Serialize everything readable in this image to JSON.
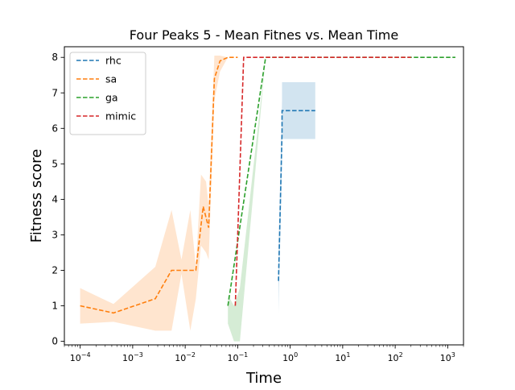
{
  "chart_data": {
    "type": "line",
    "title": "Four Peaks 5 - Mean Fitnes vs. Mean Time",
    "xlabel": "Time",
    "ylabel": "Fitness score",
    "xscale": "log",
    "xlim": [
      5e-05,
      2000
    ],
    "ylim": [
      -0.1,
      8.3
    ],
    "x_ticks": [
      {
        "value": 0.0001,
        "base": "10",
        "exp": "−4"
      },
      {
        "value": 0.001,
        "base": "10",
        "exp": "−3"
      },
      {
        "value": 0.01,
        "base": "10",
        "exp": "−2"
      },
      {
        "value": 0.1,
        "base": "10",
        "exp": "−1"
      },
      {
        "value": 1,
        "base": "10",
        "exp": "0"
      },
      {
        "value": 10,
        "base": "10",
        "exp": "1"
      },
      {
        "value": 100,
        "base": "10",
        "exp": "2"
      },
      {
        "value": 1000,
        "base": "10",
        "exp": "3"
      }
    ],
    "y_ticks": [
      {
        "value": 0,
        "label": "0"
      },
      {
        "value": 1,
        "label": "1"
      },
      {
        "value": 2,
        "label": "2"
      },
      {
        "value": 3,
        "label": "3"
      },
      {
        "value": 4,
        "label": "4"
      },
      {
        "value": 5,
        "label": "5"
      },
      {
        "value": 6,
        "label": "6"
      },
      {
        "value": 7,
        "label": "7"
      },
      {
        "value": 8,
        "label": "8"
      }
    ],
    "grid": false,
    "legend_position": "top-left",
    "series": [
      {
        "name": "rhc",
        "color": "#1f77b4",
        "linestyle": "dashed",
        "x": [
          0.6,
          0.7,
          0.7,
          3.0
        ],
        "y": [
          1.7,
          5.9,
          6.5,
          6.5
        ],
        "band_x": [
          0.6,
          0.7,
          0.7,
          3.0
        ],
        "band_low": [
          0.8,
          5.0,
          5.7,
          5.7
        ],
        "band_high": [
          2.6,
          6.8,
          7.3,
          7.3
        ]
      },
      {
        "name": "sa",
        "color": "#ff7f0e",
        "linestyle": "dashed",
        "x": [
          0.0001,
          0.00043,
          0.0027,
          0.0055,
          0.016,
          0.022,
          0.028,
          0.036,
          0.046,
          0.065,
          0.1
        ],
        "y": [
          1.0,
          0.8,
          1.2,
          2.0,
          2.0,
          3.8,
          3.2,
          7.4,
          7.9,
          8.0,
          8.0
        ],
        "band_x": [
          0.0001,
          0.00043,
          0.0027,
          0.0055,
          0.0085,
          0.0125,
          0.016,
          0.02,
          0.025,
          0.028,
          0.036,
          0.046,
          0.065,
          0.1
        ],
        "band_low": [
          0.5,
          0.55,
          0.3,
          0.3,
          1.9,
          0.3,
          1.2,
          2.7,
          2.5,
          2.3,
          6.8,
          7.6,
          8.0,
          8.0
        ],
        "band_high": [
          1.5,
          1.05,
          2.1,
          3.7,
          2.3,
          3.7,
          2.1,
          4.7,
          4.5,
          3.8,
          8.05,
          8.05,
          8.0,
          8.0
        ]
      },
      {
        "name": "ga",
        "color": "#2ca02c",
        "linestyle": "dashed",
        "x": [
          0.065,
          0.34,
          1.5,
          1400
        ],
        "y": [
          1.0,
          8.0,
          8.0,
          8.0
        ],
        "band_x": [
          0.065,
          0.085,
          0.11,
          0.34
        ],
        "band_low": [
          0.5,
          0.0,
          0.0,
          8.0
        ],
        "band_high": [
          1.3,
          1.0,
          1.5,
          8.0
        ]
      },
      {
        "name": "mimic",
        "color": "#d62728",
        "linestyle": "dashed",
        "x": [
          0.09,
          0.1,
          0.13,
          1.0,
          200
        ],
        "y": [
          1.0,
          3.0,
          8.0,
          8.0,
          8.0
        ]
      }
    ]
  }
}
